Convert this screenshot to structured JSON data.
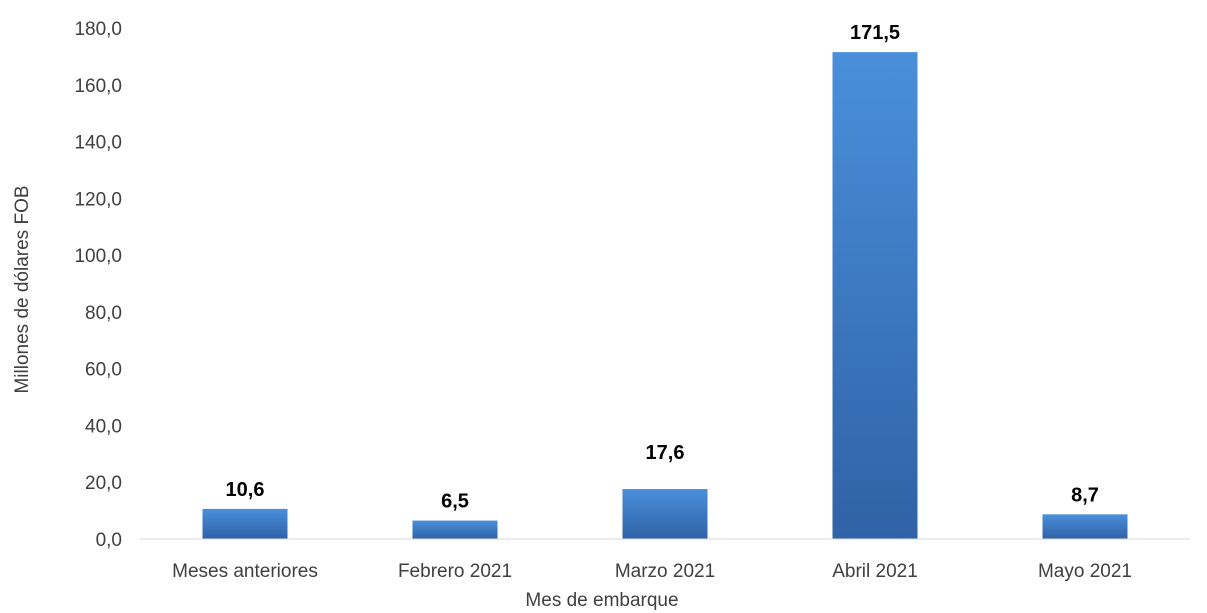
{
  "chart_data": {
    "type": "bar",
    "title": "",
    "xlabel": "Mes de embarque",
    "ylabel": "Millones de dólares FOB",
    "categories": [
      "Meses anteriores",
      "Febrero 2021",
      "Marzo 2021",
      "Abril 2021",
      "Mayo 2021"
    ],
    "values": [
      10.6,
      6.5,
      17.6,
      171.5,
      8.7
    ],
    "value_labels": [
      "10,6",
      "6,5",
      "17,6",
      "171,5",
      "8,7"
    ],
    "ylim": [
      0,
      180
    ],
    "yticks": [
      0,
      20,
      40,
      60,
      80,
      100,
      120,
      140,
      160,
      180
    ],
    "ytick_labels": [
      "0,0",
      "20,0",
      "40,0",
      "60,0",
      "80,0",
      "100,0",
      "120,0",
      "140,0",
      "160,0",
      "180,0"
    ],
    "grid": false,
    "legend": "none",
    "colors": {
      "bar_top": "#4A8FDB",
      "bar_bottom": "#2F62A6",
      "axis": "#D9D9D9"
    }
  }
}
